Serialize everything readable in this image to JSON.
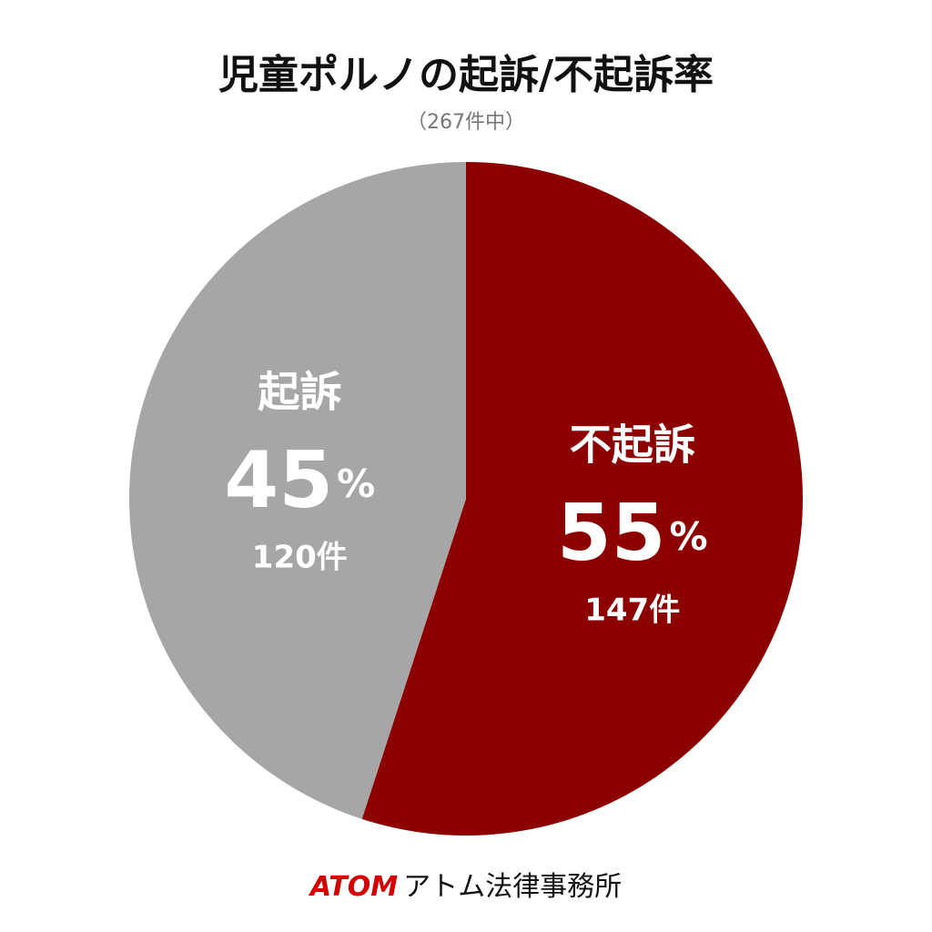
{
  "chart_data": {
    "type": "pie",
    "title": "児童ポルノの起訴/不起訴率",
    "subtitle": "（267件中）",
    "categories": [
      "不起訴",
      "起訴"
    ],
    "values": [
      55,
      45
    ],
    "unit": "%",
    "count_labels": [
      "147件",
      "120件"
    ],
    "colors": [
      "#8c0000",
      "#a6a6a6"
    ]
  },
  "footer": {
    "brand": "ATOM",
    "name": "アトム法律事務所"
  }
}
